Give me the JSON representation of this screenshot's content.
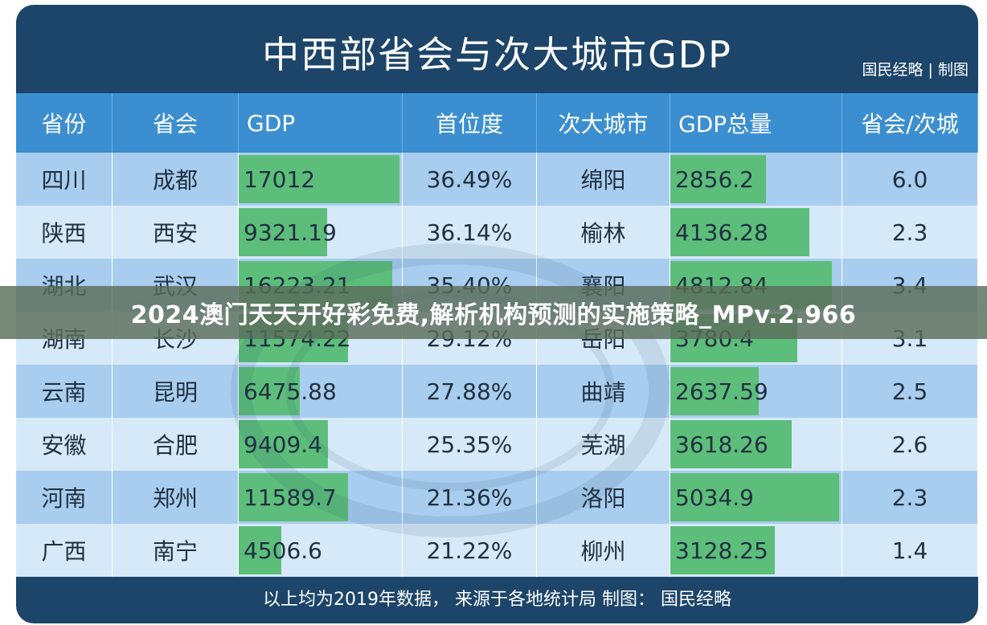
{
  "title": "中西部省会与次大城市GDP",
  "credit": "国民经略 | 制图",
  "footer": "以上均为2019年数据， 来源于各地统计局  制图： 国民经略",
  "overlay_text": "2024澳门天天开好彩免费,解析机构预测的实施策略_MPv.2.966",
  "colors": {
    "header_bg": "#3b8fd0",
    "row_light": "#d6e9f8",
    "row_dark": "#a9cdee",
    "bar": "#5dbe7b",
    "frame": "#1c4569"
  },
  "chart_data": {
    "type": "table",
    "columns": [
      "省份",
      "省会",
      "GDP",
      "首位度",
      "次大城市",
      "GDP总量",
      "省会/次城"
    ],
    "bar_columns": [
      "GDP",
      "GDP总量"
    ],
    "rows": [
      {
        "province": "四川",
        "capital": "成都",
        "gdp": "17012",
        "gdp_value": 17012,
        "primacy": "36.49%",
        "second_city": "绵阳",
        "second_gdp": "2856.2",
        "second_gdp_value": 2856.2,
        "ratio": "6.0"
      },
      {
        "province": "陕西",
        "capital": "西安",
        "gdp": "9321.19",
        "gdp_value": 9321.19,
        "primacy": "36.14%",
        "second_city": "榆林",
        "second_gdp": "4136.28",
        "second_gdp_value": 4136.28,
        "ratio": "2.3"
      },
      {
        "province": "湖北",
        "capital": "武汉",
        "gdp": "16223.21",
        "gdp_value": 16223.21,
        "primacy": "35.40%",
        "second_city": "襄阳",
        "second_gdp": "4812.84",
        "second_gdp_value": 4812.84,
        "ratio": "3.4"
      },
      {
        "province": "湖南",
        "capital": "长沙",
        "gdp": "11574.22",
        "gdp_value": 11574.22,
        "primacy": "29.12%",
        "second_city": "岳阳",
        "second_gdp": "3780.4",
        "second_gdp_value": 3780.4,
        "ratio": "3.1"
      },
      {
        "province": "云南",
        "capital": "昆明",
        "gdp": "6475.88",
        "gdp_value": 6475.88,
        "primacy": "27.88%",
        "second_city": "曲靖",
        "second_gdp": "2637.59",
        "second_gdp_value": 2637.59,
        "ratio": "2.5"
      },
      {
        "province": "安徽",
        "capital": "合肥",
        "gdp": "9409.4",
        "gdp_value": 9409.4,
        "primacy": "25.35%",
        "second_city": "芜湖",
        "second_gdp": "3618.26",
        "second_gdp_value": 3618.26,
        "ratio": "2.6"
      },
      {
        "province": "河南",
        "capital": "郑州",
        "gdp": "11589.7",
        "gdp_value": 11589.7,
        "primacy": "21.36%",
        "second_city": "洛阳",
        "second_gdp": "5034.9",
        "second_gdp_value": 5034.9,
        "ratio": "2.3"
      },
      {
        "province": "广西",
        "capital": "南宁",
        "gdp": "4506.6",
        "gdp_value": 4506.6,
        "primacy": "21.22%",
        "second_city": "柳州",
        "second_gdp": "3128.25",
        "second_gdp_value": 3128.25,
        "ratio": "1.4"
      }
    ]
  }
}
